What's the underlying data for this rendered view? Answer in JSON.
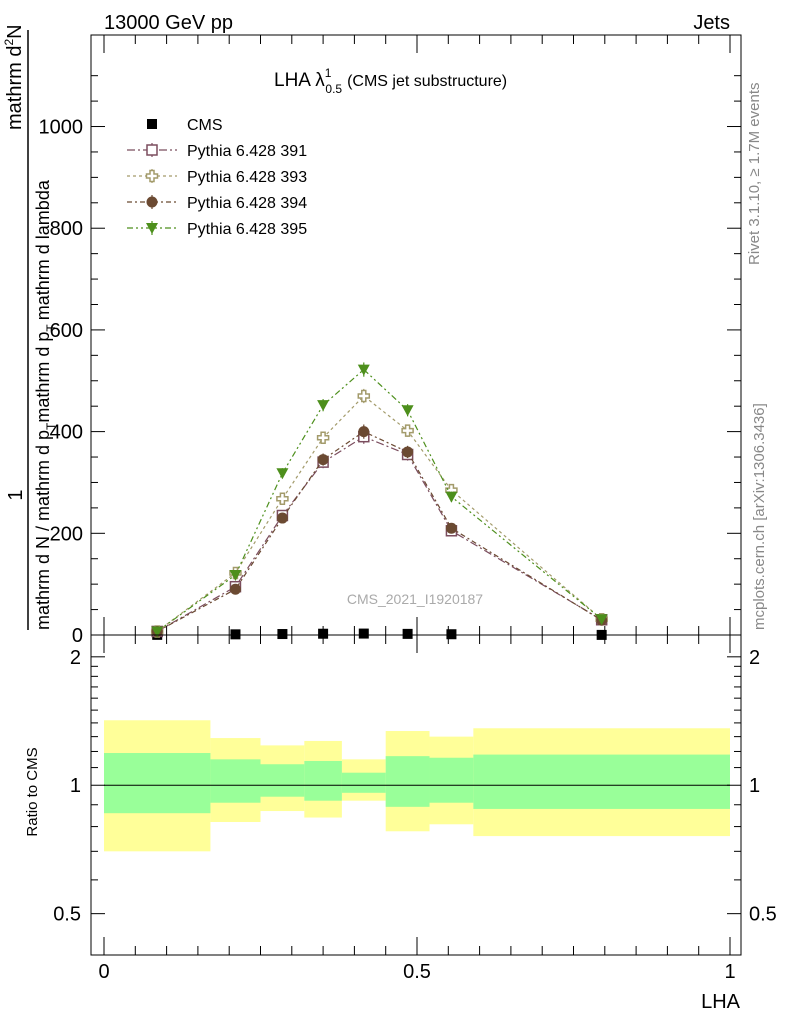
{
  "header": {
    "left": "13000 GeV pp",
    "right": "Jets"
  },
  "side_labels": {
    "rivet": "Rivet 3.1.10, ≥ 1.7M events",
    "mcplots": "mcplots.cern.ch [arXiv:1306.3436]"
  },
  "colors": {
    "cms": "#000000",
    "p391": "#7b4d5e",
    "p393": "#a39b6b",
    "p394": "#6b4a32",
    "p395": "#4d8f1c",
    "band_outer": "#ffff99",
    "band_inner": "#99ff99"
  },
  "chart_data": [
    {
      "type": "line",
      "title_main": "LHA λ",
      "title_sup": "1",
      "title_sub": "0.5",
      "title_rest": "(CMS jet substructure)",
      "watermark": "CMS_2021_I1920187",
      "ylabel_top": "1",
      "ylabel_num": "mathrm d",
      "ylabel_num_sup": "2",
      "ylabel_num_end": "N",
      "ylabel_den": "mathrm d N / mathrm d p",
      "ylabel_den_sub": "T",
      "ylabel_den_end": "mathrm d p",
      "ylabel_den_sub2": "T",
      "ylabel_den_tail": "mathrm d lambda",
      "xlim": [
        0,
        1
      ],
      "ylim": [
        0,
        1180
      ],
      "y_ticks": [
        0,
        200,
        400,
        600,
        800,
        1000
      ],
      "y_tick_labels": [
        "0",
        "200",
        "400",
        "600",
        "800",
        "1000"
      ],
      "legend": [
        {
          "key": "cms",
          "label": "CMS",
          "marker": "filled-square"
        },
        {
          "key": "p391",
          "label": "Pythia 6.428 391",
          "marker": "open-square"
        },
        {
          "key": "p393",
          "label": "Pythia 6.428 393",
          "marker": "open-cross"
        },
        {
          "key": "p394",
          "label": "Pythia 6.428 394",
          "marker": "filled-circle"
        },
        {
          "key": "p395",
          "label": "Pythia 6.428 395",
          "marker": "filled-triangle-down"
        }
      ],
      "x": [
        0.085,
        0.21,
        0.285,
        0.35,
        0.415,
        0.485,
        0.555,
        0.795
      ],
      "series": [
        {
          "key": "cms",
          "values": [
            0.3,
            1.3,
            1.9,
            2.5,
            2.8,
            2.2,
            1.5,
            0.2
          ]
        },
        {
          "key": "p391",
          "values": [
            7,
            95,
            235,
            340,
            390,
            355,
            205,
            30
          ]
        },
        {
          "key": "p393",
          "values": [
            7,
            122,
            268,
            388,
            470,
            402,
            285,
            31
          ]
        },
        {
          "key": "p394",
          "values": [
            7,
            90,
            230,
            345,
            400,
            360,
            210,
            29
          ]
        },
        {
          "key": "p395",
          "values": [
            7,
            118,
            318,
            452,
            522,
            442,
            272,
            31
          ]
        }
      ],
      "errors": [
        3,
        6,
        10,
        12,
        14,
        12,
        10,
        4
      ]
    },
    {
      "type": "area",
      "ylabel": "Ratio to CMS",
      "xlabel": "LHA",
      "xlim": [
        0,
        1
      ],
      "ylim": [
        0.4,
        2.25
      ],
      "y_ticks": [
        0.5,
        1,
        2
      ],
      "y_tick_labels": [
        "0.5",
        "1",
        "2"
      ],
      "x_ticks": [
        0,
        0.5,
        1
      ],
      "x_tick_labels": [
        "0",
        "0.5",
        "1"
      ],
      "bin_edges": [
        0,
        0.17,
        0.25,
        0.32,
        0.38,
        0.45,
        0.52,
        0.59,
        1.0
      ],
      "band_outer": {
        "low": [
          0.7,
          0.82,
          0.87,
          0.84,
          0.92,
          0.78,
          0.81,
          0.76
        ],
        "high": [
          1.42,
          1.29,
          1.24,
          1.27,
          1.15,
          1.34,
          1.3,
          1.36
        ]
      },
      "band_inner": {
        "low": [
          0.86,
          0.91,
          0.94,
          0.92,
          0.96,
          0.89,
          0.91,
          0.88
        ],
        "high": [
          1.19,
          1.15,
          1.12,
          1.14,
          1.07,
          1.17,
          1.16,
          1.18
        ]
      },
      "reference": 1
    }
  ]
}
